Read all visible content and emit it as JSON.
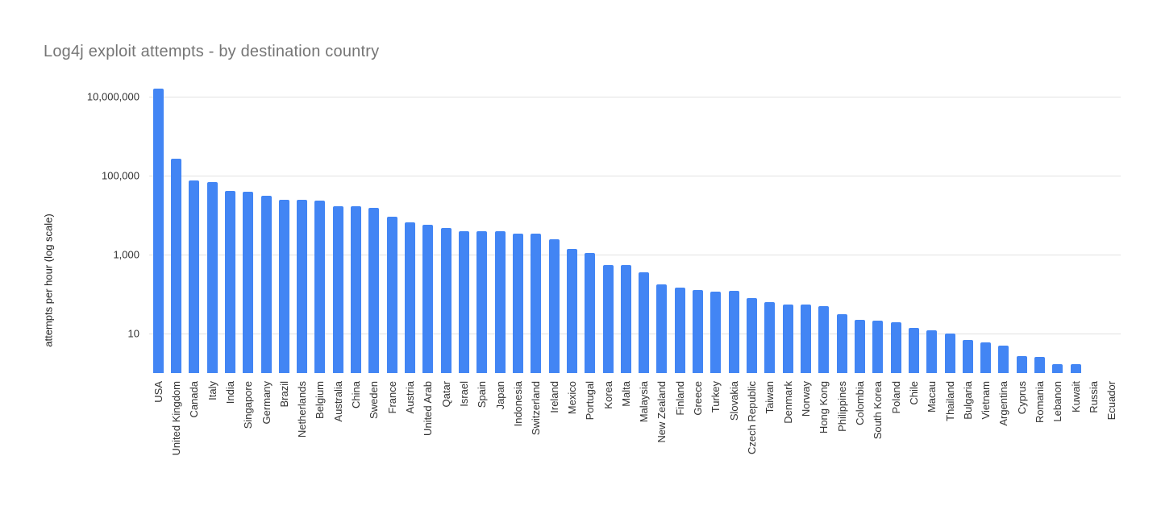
{
  "title": "Log4j exploit attempts - by destination country",
  "colors": {
    "bar": "#4285f4",
    "grid": "#e2e2e2",
    "title_text": "#757575",
    "axis_text": "#333333",
    "background": "#ffffff"
  },
  "chart_data": {
    "type": "bar",
    "title": "Log4j exploit attempts - by destination country",
    "xlabel": "",
    "ylabel": "attempts per hour (log scale)",
    "y_scale": "log",
    "ylim": [
      1,
      30000000
    ],
    "grid": true,
    "legend_position": "none",
    "y_ticks": [
      {
        "label": "10,000,000",
        "value": 10000000
      },
      {
        "label": "100,000",
        "value": 100000
      },
      {
        "label": "1,000",
        "value": 1000
      },
      {
        "label": "10",
        "value": 10
      }
    ],
    "categories": [
      "USA",
      "United Kingdom",
      "Canada",
      "Italy",
      "India",
      "Singapore",
      "Germany",
      "Brazil",
      "Netherlands",
      "Belgium",
      "Australia",
      "China",
      "Sweden",
      "France",
      "Austria",
      "United Arab",
      "Qatar",
      "Israel",
      "Spain",
      "Japan",
      "Indonesia",
      "Switzerland",
      "Ireland",
      "Mexico",
      "Portugal",
      "Korea",
      "Malta",
      "Malaysia",
      "New Zealand",
      "Finland",
      "Greece",
      "Turkey",
      "Slovakia",
      "Czech Republic",
      "Taiwan",
      "Denmark",
      "Norway",
      "Hong Kong",
      "Philippines",
      "Colombia",
      "South Korea",
      "Poland",
      "Chile",
      "Macau",
      "Thailand",
      "Bulgaria",
      "Vietnam",
      "Argentina",
      "Cyprus",
      "Romania",
      "Lebanon",
      "Kuwait",
      "Russia",
      "Ecuador"
    ],
    "values": [
      16000000,
      270000,
      76000,
      69000,
      41000,
      39000,
      31000,
      25000,
      25000,
      23000,
      17000,
      17000,
      15000,
      9000,
      6500,
      5700,
      4700,
      3900,
      3900,
      3900,
      3400,
      3400,
      2500,
      1400,
      1100,
      540,
      540,
      360,
      175,
      145,
      125,
      115,
      120,
      80,
      63,
      54,
      54,
      50,
      31,
      22,
      21,
      19,
      14,
      12,
      10,
      7,
      6,
      5,
      2.7,
      2.6,
      1.7,
      1.7,
      1,
      1
    ]
  }
}
